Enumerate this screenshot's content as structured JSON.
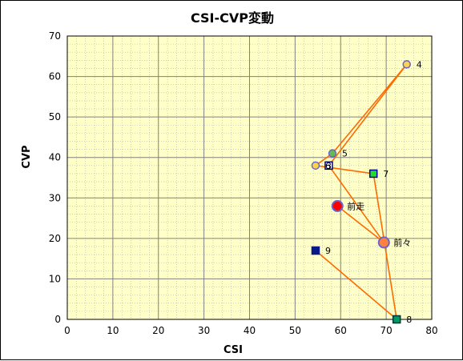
{
  "chart_data": {
    "type": "scatter",
    "title": "CSI-CVP変動",
    "xlabel": "CSI",
    "ylabel": "CVP",
    "xlim": [
      0,
      80
    ],
    "ylim": [
      0,
      70
    ],
    "x_ticks": [
      "0",
      "10",
      "20",
      "30",
      "40",
      "50",
      "60",
      "70",
      "80"
    ],
    "y_ticks": [
      "0",
      "10",
      "20",
      "30",
      "40",
      "50",
      "60",
      "70"
    ],
    "grid": true,
    "plot_background": "#ffffc8",
    "line_color": "#ff6a00",
    "points": [
      {
        "label": "前走",
        "x": 59.3,
        "y": 28,
        "marker": "circle-large",
        "fill": "#ff0000",
        "stroke": "#6666cc"
      },
      {
        "label": "前々",
        "x": 69.5,
        "y": 19,
        "marker": "circle-large",
        "fill": "#ff8040",
        "stroke": "#6666cc"
      },
      {
        "label": "3",
        "x": 57.4,
        "y": 38,
        "marker": "square",
        "fill": "#ffffff",
        "stroke": "#00007a"
      },
      {
        "label": "4",
        "x": 74.5,
        "y": 63,
        "marker": "circle",
        "fill": "#ffd24d",
        "stroke": "#6666cc"
      },
      {
        "label": "5",
        "x": 58.2,
        "y": 41,
        "marker": "circle",
        "fill": "#66bb55",
        "stroke": "#6666cc"
      },
      {
        "label": "6",
        "x": 54.5,
        "y": 38,
        "marker": "circle",
        "fill": "#ffd24d",
        "stroke": "#6666cc"
      },
      {
        "label": "7",
        "x": 67.2,
        "y": 36,
        "marker": "square",
        "fill": "#22dd22",
        "stroke": "#0000aa"
      },
      {
        "label": "8",
        "x": 72.3,
        "y": 0,
        "marker": "square",
        "fill": "#009966",
        "stroke": "#003333"
      },
      {
        "label": "9",
        "x": 54.5,
        "y": 17,
        "marker": "square",
        "fill": "#0a1a8a",
        "stroke": "#0a1a8a"
      }
    ],
    "connections": [
      [
        "前走",
        "前々"
      ],
      [
        "前々",
        "3"
      ],
      [
        "3",
        "4"
      ],
      [
        "4",
        "5"
      ],
      [
        "5",
        "6"
      ],
      [
        "6",
        "7"
      ],
      [
        "7",
        "8"
      ],
      [
        "8",
        "9"
      ]
    ]
  }
}
